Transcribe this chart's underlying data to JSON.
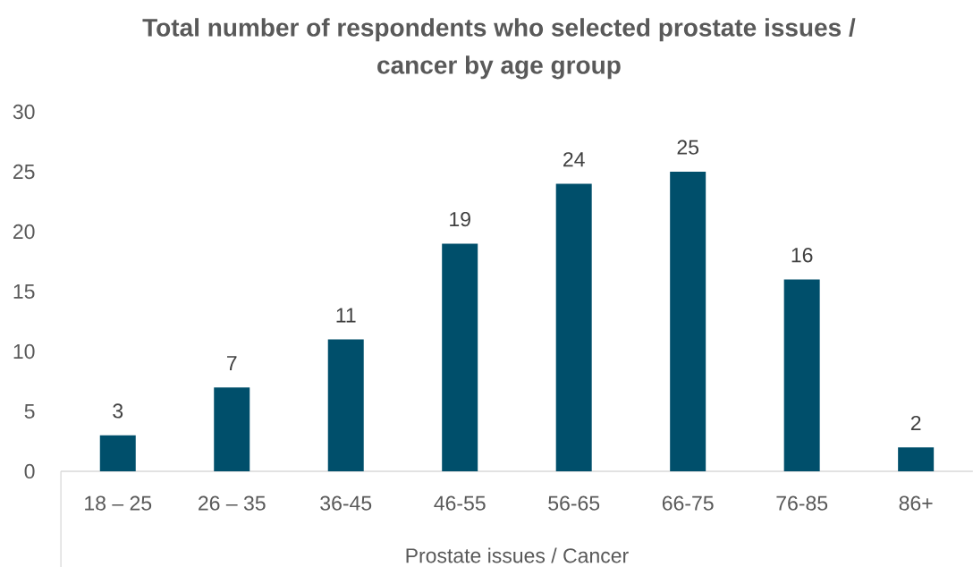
{
  "chart_data": {
    "type": "bar",
    "title": "Total number of respondents who selected prostate issues / cancer by age group",
    "xlabel": "Prostate issues / Cancer",
    "categories": [
      "18 – 25",
      "26 – 35",
      "36-45",
      "46-55",
      "56-65",
      "66-75",
      "76-85",
      "86+"
    ],
    "values": [
      3,
      7,
      11,
      19,
      24,
      25,
      16,
      2
    ],
    "color": "#004f6b",
    "ylim": [
      0,
      30
    ],
    "yticks": [
      0,
      5,
      10,
      15,
      20,
      25,
      30
    ],
    "data_labels": true
  }
}
